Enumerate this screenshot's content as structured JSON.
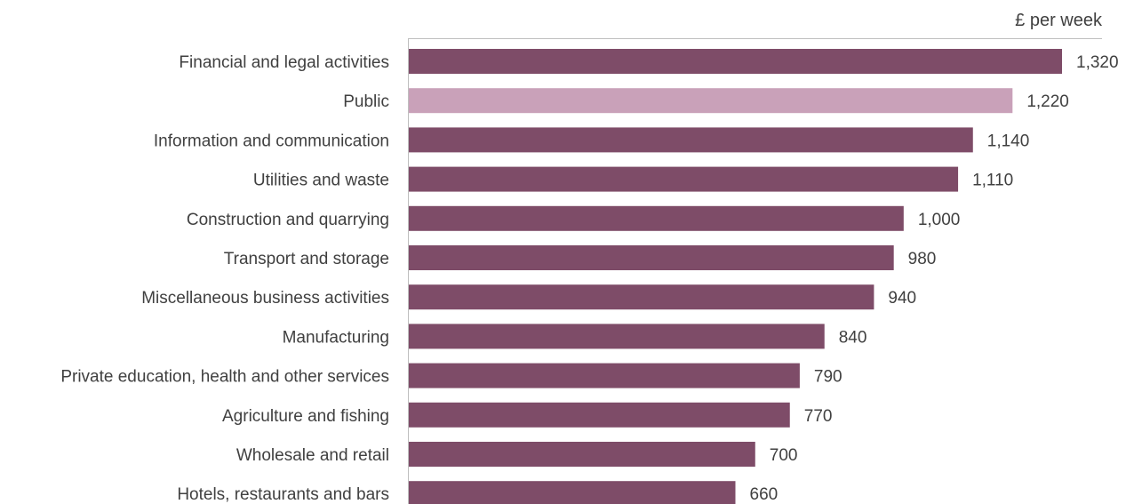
{
  "colors": {
    "default_bar": "#7e4c68",
    "highlight_bar": "#c9a1b9",
    "axis": "#bfbfbf",
    "text": "#404040"
  },
  "chart_data": {
    "type": "bar",
    "orientation": "horizontal",
    "unit_label": "£ per week",
    "categories": [
      "Financial and legal activities",
      "Public ",
      "Information and communication",
      "Utilities and waste",
      "Construction and quarrying",
      "Transport and storage",
      "Miscellaneous business activities",
      "Manufacturing",
      "Private education, health and other services",
      "Agriculture and fishing",
      "Wholesale and retail",
      "Hotels, restaurants and bars"
    ],
    "values": [
      1320,
      1220,
      1140,
      1110,
      1000,
      980,
      940,
      840,
      790,
      770,
      700,
      660
    ],
    "value_labels": [
      "1,320",
      "1,220",
      "1,140",
      "1,110",
      "1,000",
      "980",
      "940",
      "840",
      "790",
      "770",
      "700",
      "660"
    ],
    "highlight_index": 1,
    "xlim": [
      0,
      1320
    ],
    "grid": false,
    "legend": "none"
  }
}
